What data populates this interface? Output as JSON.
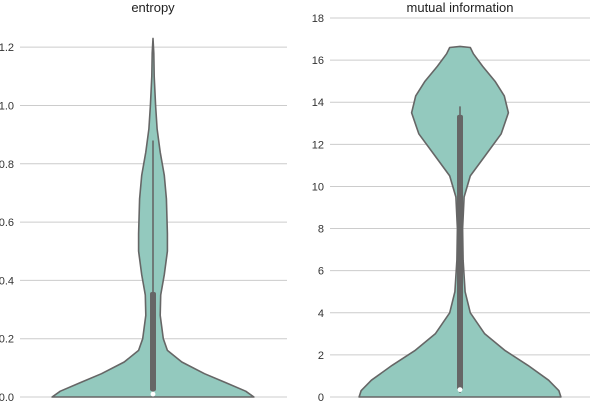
{
  "chart_data": [
    {
      "type": "violin",
      "title": "entropy",
      "xlabel": "",
      "ylabel": "",
      "ylim": [
        0,
        1.3
      ],
      "yticks": [
        0.0,
        0.2,
        0.4,
        0.6,
        0.8,
        1.0,
        1.2
      ],
      "ytick_labels": [
        "0.0",
        "0.2",
        "0.4",
        "0.6",
        "0.8",
        "1.0",
        "1.2"
      ],
      "grid": true,
      "density_profile": [
        {
          "y": 0.0,
          "w": 0.98
        },
        {
          "y": 0.02,
          "w": 0.9
        },
        {
          "y": 0.05,
          "w": 0.7
        },
        {
          "y": 0.08,
          "w": 0.5
        },
        {
          "y": 0.12,
          "w": 0.28
        },
        {
          "y": 0.16,
          "w": 0.14
        },
        {
          "y": 0.2,
          "w": 0.1
        },
        {
          "y": 0.28,
          "w": 0.07
        },
        {
          "y": 0.35,
          "w": 0.075
        },
        {
          "y": 0.42,
          "w": 0.11
        },
        {
          "y": 0.5,
          "w": 0.14
        },
        {
          "y": 0.56,
          "w": 0.14
        },
        {
          "y": 0.62,
          "w": 0.135
        },
        {
          "y": 0.68,
          "w": 0.13
        },
        {
          "y": 0.76,
          "w": 0.11
        },
        {
          "y": 0.84,
          "w": 0.07
        },
        {
          "y": 0.92,
          "w": 0.04
        },
        {
          "y": 1.0,
          "w": 0.025
        },
        {
          "y": 1.1,
          "w": 0.012
        },
        {
          "y": 1.18,
          "w": 0.008
        },
        {
          "y": 1.23,
          "w": 0.0
        }
      ],
      "whisker": [
        0.0,
        0.88
      ],
      "quartiles": [
        0.02,
        0.36
      ],
      "median": 0.01,
      "fill_color": "#93c9be",
      "line_color": "#666666"
    },
    {
      "type": "violin",
      "title": "mutual information",
      "xlabel": "",
      "ylabel": "",
      "ylim": [
        0,
        18
      ],
      "yticks": [
        0,
        2,
        4,
        6,
        8,
        10,
        12,
        14,
        16,
        18
      ],
      "ytick_labels": [
        "0",
        "2",
        "4",
        "6",
        "8",
        "10",
        "12",
        "14",
        "16",
        "18"
      ],
      "grid": true,
      "density_profile": [
        {
          "y": 0.0,
          "w": 0.98
        },
        {
          "y": 0.3,
          "w": 0.96
        },
        {
          "y": 0.8,
          "w": 0.86
        },
        {
          "y": 1.5,
          "w": 0.66
        },
        {
          "y": 2.2,
          "w": 0.44
        },
        {
          "y": 3.0,
          "w": 0.24
        },
        {
          "y": 4.0,
          "w": 0.1
        },
        {
          "y": 5.0,
          "w": 0.05
        },
        {
          "y": 6.5,
          "w": 0.03
        },
        {
          "y": 8.0,
          "w": 0.025
        },
        {
          "y": 9.5,
          "w": 0.04
        },
        {
          "y": 10.5,
          "w": 0.1
        },
        {
          "y": 11.5,
          "w": 0.25
        },
        {
          "y": 12.5,
          "w": 0.4
        },
        {
          "y": 13.5,
          "w": 0.47
        },
        {
          "y": 14.3,
          "w": 0.43
        },
        {
          "y": 15.0,
          "w": 0.34
        },
        {
          "y": 15.7,
          "w": 0.22
        },
        {
          "y": 16.3,
          "w": 0.13
        },
        {
          "y": 16.6,
          "w": 0.1
        },
        {
          "y": 16.65,
          "w": 0.0
        }
      ],
      "whisker": [
        0.2,
        13.8
      ],
      "quartiles": [
        0.35,
        13.4
      ],
      "median": 0.35,
      "fill_color": "#93c9be",
      "line_color": "#666666"
    }
  ]
}
